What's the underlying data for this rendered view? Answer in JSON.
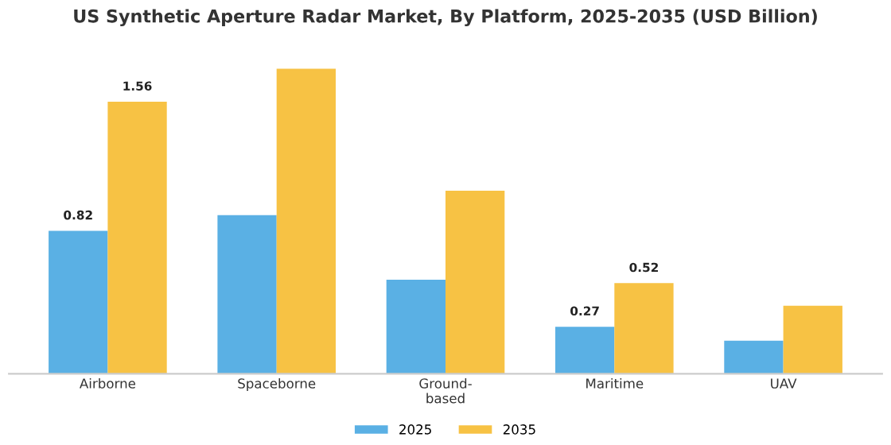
{
  "chart_data": {
    "type": "bar",
    "title": "US Synthetic Aperture Radar Market, By Platform, 2025-2035 (USD Billion)",
    "categories": [
      "Airborne",
      "Spaceborne",
      "Ground-based",
      "Maritime",
      "UAV"
    ],
    "series": [
      {
        "name": "2025",
        "color": "#5ab0e4",
        "values": [
          0.82,
          0.91,
          0.54,
          0.27,
          0.19
        ],
        "value_labels": [
          "0.82",
          null,
          null,
          "0.27",
          null
        ]
      },
      {
        "name": "2035",
        "color": "#f7c244",
        "values": [
          1.56,
          1.75,
          1.05,
          0.52,
          0.39
        ],
        "value_labels": [
          "1.56",
          null,
          null,
          "0.52",
          null
        ]
      }
    ],
    "legend": "bottom",
    "grid": false
  }
}
